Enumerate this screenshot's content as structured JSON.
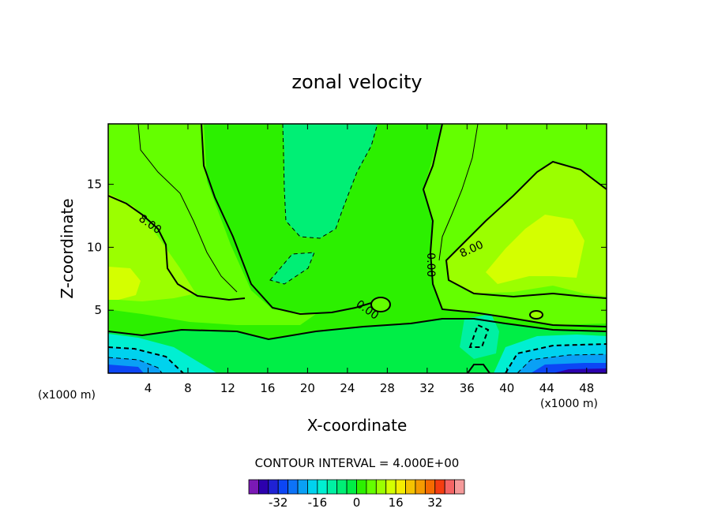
{
  "chart_data": {
    "type": "heatmap",
    "subtype": "filled-contour",
    "title": "zonal velocity",
    "xlabel": "X-coordinate",
    "ylabel": "Z-coordinate",
    "x_unit_label": "(x1000 m)",
    "y_unit_label": "(x1000 m)",
    "xlim": [
      0,
      50
    ],
    "ylim": [
      0,
      19.8
    ],
    "x_ticks": [
      4,
      8,
      12,
      16,
      20,
      24,
      28,
      32,
      36,
      40,
      44,
      48
    ],
    "y_ticks": [
      5,
      10,
      15
    ],
    "contour_interval_text": "CONTOUR INTERVAL = 4.000E+00",
    "contour_labels": [
      {
        "text": "8.00",
        "x": 4.0,
        "z": 11.6
      },
      {
        "text": "8.00",
        "x": 36.6,
        "z": 9.6
      },
      {
        "text": "0.00",
        "x": 25.8,
        "z": 4.8
      },
      {
        "text": "0.00",
        "x": 32.0,
        "z": 8.6
      }
    ],
    "colorbar": {
      "levels": [
        -40,
        -36,
        -32,
        -28,
        -24,
        -20,
        -16,
        -12,
        -8,
        -4,
        0,
        4,
        8,
        12,
        16,
        20,
        24,
        28,
        32,
        36,
        40
      ],
      "colors": [
        "#7a19b5",
        "#2c00ad",
        "#1f22d4",
        "#0c46f5",
        "#0d73f7",
        "#0aa0f5",
        "#00d2ee",
        "#00efd2",
        "#00f0a3",
        "#00ef75",
        "#00ee46",
        "#2cf000",
        "#64ff00",
        "#9bff00",
        "#d4ff00",
        "#f5ee00",
        "#f5c300",
        "#f59b00",
        "#f56b00",
        "#f53d10",
        "#f56464",
        "#f59a9a"
      ],
      "tick_labels": [
        "-32",
        "-16",
        "0",
        "16",
        "32"
      ],
      "tick_values": [
        -32,
        -16,
        0,
        16,
        32
      ]
    },
    "dominant_field": "mostly 0 to +8 (green) in the interior, +8 to +16 (light green/yellow) in the upper flanks, strongly negative near the bottom at both lateral boundaries"
  }
}
